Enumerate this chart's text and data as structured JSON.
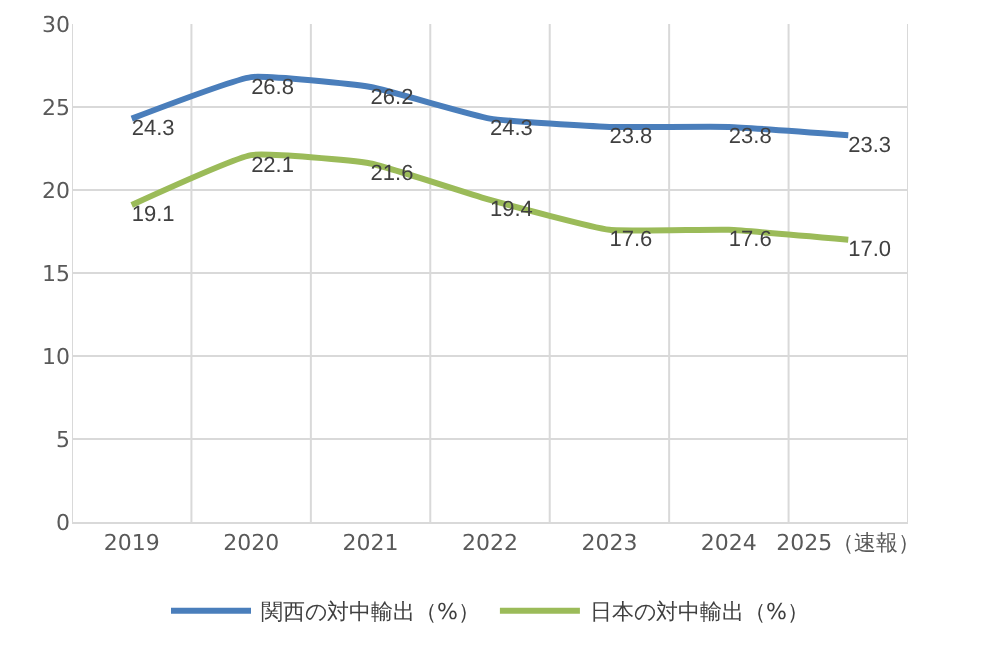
{
  "chart_data": {
    "type": "line",
    "categories": [
      "2019",
      "2020",
      "2021",
      "2022",
      "2023",
      "2024",
      "2025（速報）"
    ],
    "series": [
      {
        "name": "関西の対中輸出（%）",
        "color": "#4a7ebb",
        "values": [
          24.3,
          26.8,
          26.2,
          24.3,
          23.8,
          23.8,
          23.3
        ],
        "value_labels": [
          "24.3",
          "26.8",
          "26.2",
          "24.3",
          "23.8",
          "23.8",
          "23.3"
        ]
      },
      {
        "name": "日本の対中輸出（%）",
        "color": "#9bbb59",
        "values": [
          19.1,
          22.1,
          21.6,
          19.4,
          17.6,
          17.6,
          17.0
        ],
        "value_labels": [
          "19.1",
          "22.1",
          "21.6",
          "19.4",
          "17.6",
          "17.6",
          "17.0"
        ]
      }
    ],
    "ylim": [
      0,
      30
    ],
    "yticks": [
      0,
      5,
      10,
      15,
      20,
      25,
      30
    ],
    "grid": true,
    "legend": "bottom",
    "marker": "none",
    "line_style": "solid"
  }
}
